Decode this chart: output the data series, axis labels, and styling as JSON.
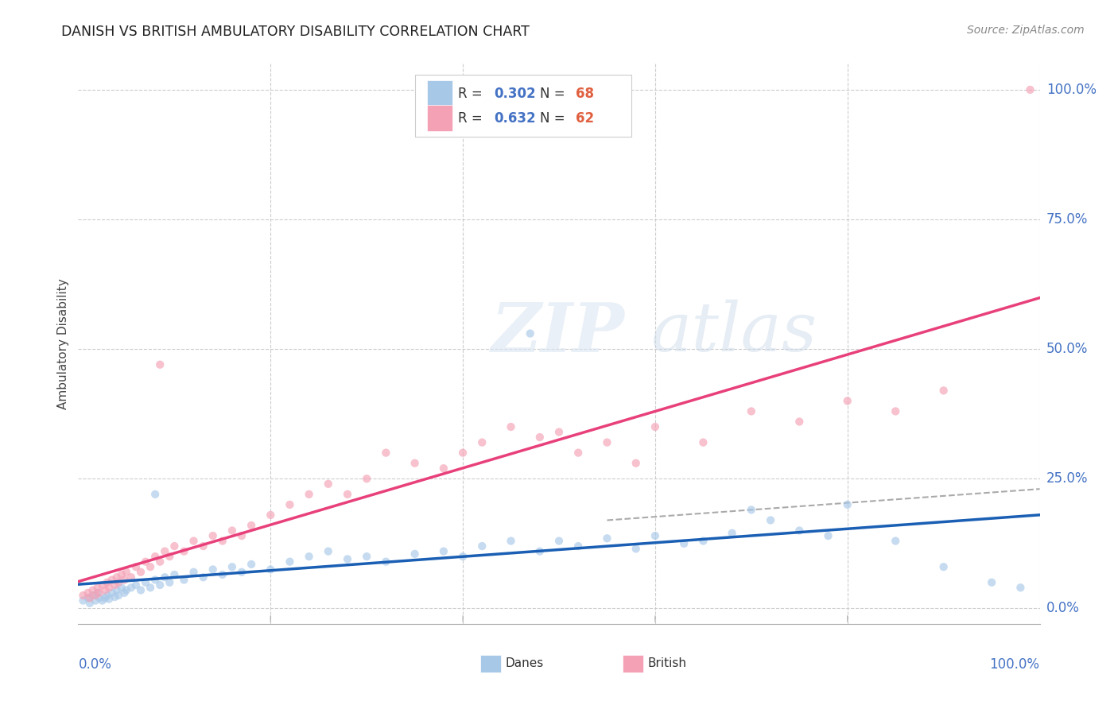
{
  "title": "DANISH VS BRITISH AMBULATORY DISABILITY CORRELATION CHART",
  "source": "Source: ZipAtlas.com",
  "ylabel": "Ambulatory Disability",
  "danes_color": "#a8c8e8",
  "british_color": "#f4a0b5",
  "danes_line_color": "#1a5fb4",
  "british_line_color": "#e8407a",
  "danes_R": 0.302,
  "danes_N": 68,
  "british_R": 0.632,
  "british_N": 62,
  "watermark_zip": "ZIP",
  "watermark_atlas": "atlas",
  "legend_label1": "R = 0.302   N = 68",
  "legend_label2": "R = 0.632   N = 62",
  "bottom_legend_danes": "Danes",
  "bottom_legend_british": "British",
  "danes_scatter_x": [
    0.5,
    1.0,
    1.2,
    1.5,
    1.8,
    2.0,
    2.2,
    2.5,
    2.8,
    3.0,
    3.2,
    3.5,
    3.8,
    4.0,
    4.2,
    4.5,
    4.8,
    5.0,
    5.5,
    6.0,
    6.5,
    7.0,
    7.5,
    8.0,
    8.5,
    9.0,
    9.5,
    10.0,
    11.0,
    12.0,
    13.0,
    14.0,
    15.0,
    16.0,
    17.0,
    18.0,
    20.0,
    22.0,
    24.0,
    26.0,
    28.0,
    30.0,
    32.0,
    35.0,
    38.0,
    40.0,
    42.0,
    45.0,
    48.0,
    50.0,
    52.0,
    55.0,
    58.0,
    60.0,
    63.0,
    65.0,
    68.0,
    70.0,
    72.0,
    75.0,
    78.0,
    80.0,
    85.0,
    90.0,
    95.0,
    98.0,
    47.0,
    8.0
  ],
  "danes_scatter_y": [
    1.5,
    2.0,
    1.0,
    2.5,
    1.5,
    3.0,
    2.0,
    1.5,
    2.0,
    2.5,
    1.8,
    3.0,
    2.2,
    3.5,
    2.5,
    4.0,
    3.0,
    3.5,
    4.0,
    4.5,
    3.5,
    5.0,
    4.0,
    5.5,
    4.5,
    6.0,
    5.0,
    6.5,
    5.5,
    7.0,
    6.0,
    7.5,
    6.5,
    8.0,
    7.0,
    8.5,
    7.5,
    9.0,
    10.0,
    11.0,
    9.5,
    10.0,
    9.0,
    10.5,
    11.0,
    10.0,
    12.0,
    13.0,
    11.0,
    13.0,
    12.0,
    13.5,
    11.5,
    14.0,
    12.5,
    13.0,
    14.5,
    19.0,
    17.0,
    15.0,
    14.0,
    20.0,
    13.0,
    8.0,
    5.0,
    4.0,
    53.0,
    22.0
  ],
  "british_scatter_x": [
    0.5,
    1.0,
    1.2,
    1.5,
    1.8,
    2.0,
    2.2,
    2.5,
    2.8,
    3.0,
    3.2,
    3.5,
    3.8,
    4.0,
    4.2,
    4.5,
    4.8,
    5.0,
    5.5,
    6.0,
    6.5,
    7.0,
    7.5,
    8.0,
    8.5,
    9.0,
    9.5,
    10.0,
    11.0,
    12.0,
    13.0,
    14.0,
    15.0,
    16.0,
    17.0,
    18.0,
    20.0,
    22.0,
    24.0,
    26.0,
    28.0,
    30.0,
    32.0,
    35.0,
    38.0,
    40.0,
    42.0,
    45.0,
    48.0,
    50.0,
    52.0,
    55.0,
    58.0,
    60.0,
    65.0,
    70.0,
    75.0,
    80.0,
    85.0,
    90.0,
    99.0,
    8.5
  ],
  "british_scatter_y": [
    2.5,
    3.0,
    2.0,
    3.5,
    2.5,
    4.0,
    3.0,
    4.5,
    3.5,
    5.0,
    4.0,
    5.5,
    4.5,
    6.0,
    5.0,
    6.5,
    5.5,
    7.0,
    6.0,
    8.0,
    7.0,
    9.0,
    8.0,
    10.0,
    9.0,
    11.0,
    10.0,
    12.0,
    11.0,
    13.0,
    12.0,
    14.0,
    13.0,
    15.0,
    14.0,
    16.0,
    18.0,
    20.0,
    22.0,
    24.0,
    22.0,
    25.0,
    30.0,
    28.0,
    27.0,
    30.0,
    32.0,
    35.0,
    33.0,
    34.0,
    30.0,
    32.0,
    28.0,
    35.0,
    32.0,
    38.0,
    36.0,
    40.0,
    38.0,
    42.0,
    100.0,
    47.0
  ]
}
